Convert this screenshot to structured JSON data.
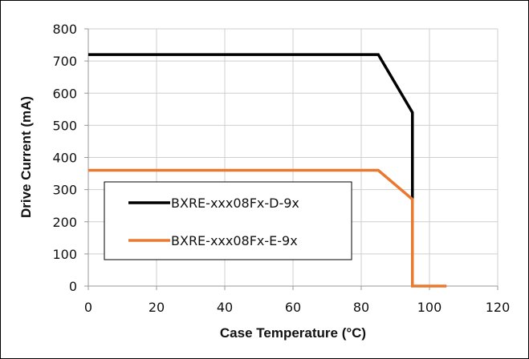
{
  "chart_data": {
    "type": "line",
    "xlabel": "Case Temperature (°C)",
    "ylabel": "Drive Current (mA)",
    "xlim": [
      0,
      120
    ],
    "ylim": [
      0,
      800
    ],
    "xticks": [
      0,
      20,
      40,
      60,
      80,
      100,
      120
    ],
    "yticks": [
      0,
      100,
      200,
      300,
      400,
      500,
      600,
      700,
      800
    ],
    "grid": true,
    "legend_placement": "lower-left inside plot",
    "series": [
      {
        "name": "BXRE-xxx08Fx-D-9x",
        "color": "#000000",
        "x": [
          0,
          85,
          95,
          95
        ],
        "y": [
          720,
          720,
          540,
          270
        ]
      },
      {
        "name": "BXRE-xxx08Fx-E-9x",
        "color": "#E8792E",
        "x": [
          0,
          85,
          95,
          95,
          105
        ],
        "y": [
          360,
          360,
          270,
          0,
          0
        ]
      }
    ]
  }
}
